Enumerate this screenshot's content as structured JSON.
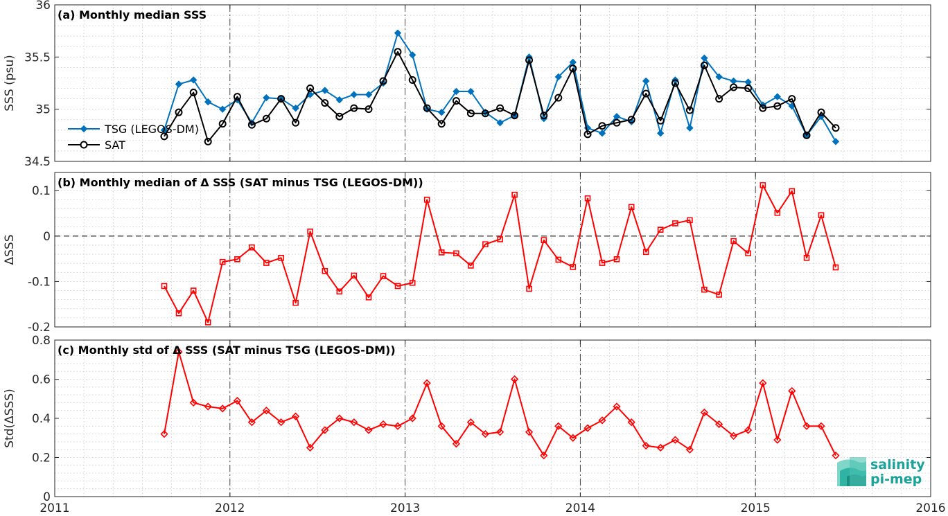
{
  "chart_data": [
    {
      "type": "line",
      "title": "(a) Monthly median SSS",
      "ylabel": "SSS (psu)",
      "ylim": [
        34.5,
        36
      ],
      "yticks": [
        "34.5",
        "35",
        "35.5",
        "36"
      ],
      "xlim": [
        2011,
        2016
      ],
      "legend_position": "left",
      "grid": true,
      "x": [
        2011.625,
        2011.708,
        2011.792,
        2011.875,
        2011.958,
        2012.042,
        2012.125,
        2012.208,
        2012.292,
        2012.375,
        2012.458,
        2012.542,
        2012.625,
        2012.708,
        2012.792,
        2012.875,
        2012.958,
        2013.042,
        2013.125,
        2013.208,
        2013.292,
        2013.375,
        2013.458,
        2013.542,
        2013.625,
        2013.708,
        2013.792,
        2013.875,
        2013.958,
        2014.042,
        2014.125,
        2014.208,
        2014.292,
        2014.375,
        2014.458,
        2014.542,
        2014.625,
        2014.708,
        2014.792,
        2014.875,
        2014.958,
        2015.042,
        2015.125,
        2015.208,
        2015.292,
        2015.375,
        2015.458
      ],
      "series": [
        {
          "name": "TSG (LEGOS-DM)",
          "color": "#0072BD",
          "marker": "diamond",
          "values": [
            34.8,
            35.24,
            35.28,
            35.07,
            35.0,
            35.09,
            34.87,
            35.11,
            35.1,
            35.01,
            35.14,
            35.18,
            35.09,
            35.14,
            35.14,
            35.25,
            35.73,
            35.52,
            35.0,
            34.97,
            35.17,
            35.17,
            34.97,
            34.87,
            34.94,
            35.5,
            34.91,
            35.31,
            35.45,
            34.82,
            34.77,
            34.93,
            34.88,
            35.27,
            34.77,
            35.28,
            34.82,
            35.49,
            35.31,
            35.27,
            35.26,
            35.04,
            35.12,
            35.03,
            34.75,
            34.93,
            34.69
          ]
        },
        {
          "name": "SAT",
          "color": "#000000",
          "marker": "circle",
          "values": [
            34.74,
            34.97,
            35.16,
            34.69,
            34.86,
            35.12,
            34.85,
            34.91,
            35.1,
            34.87,
            35.2,
            35.06,
            34.93,
            35.01,
            35.0,
            35.27,
            35.55,
            35.28,
            35.01,
            34.86,
            35.08,
            34.96,
            34.96,
            35.01,
            34.94,
            35.47,
            34.94,
            35.11,
            35.39,
            34.76,
            34.84,
            34.87,
            34.9,
            35.15,
            34.89,
            35.25,
            34.99,
            35.42,
            35.1,
            35.21,
            35.2,
            35.01,
            35.03,
            35.1,
            34.75,
            34.97,
            34.82
          ]
        }
      ]
    },
    {
      "type": "line",
      "title": "(b) Monthly median of Δ SSS (SAT minus TSG (LEGOS-DM))",
      "ylabel": "ΔSSS",
      "ylim": [
        -0.2,
        0.14
      ],
      "yticks": [
        "-0.2",
        "-0.1",
        "0",
        "0.1"
      ],
      "xlim": [
        2011,
        2016
      ],
      "reference_line": 0,
      "grid": true,
      "x": [
        2011.625,
        2011.708,
        2011.792,
        2011.875,
        2011.958,
        2012.042,
        2012.125,
        2012.208,
        2012.292,
        2012.375,
        2012.458,
        2012.542,
        2012.625,
        2012.708,
        2012.792,
        2012.875,
        2012.958,
        2013.042,
        2013.125,
        2013.208,
        2013.292,
        2013.375,
        2013.458,
        2013.542,
        2013.625,
        2013.708,
        2013.792,
        2013.875,
        2013.958,
        2014.042,
        2014.125,
        2014.208,
        2014.292,
        2014.375,
        2014.458,
        2014.542,
        2014.625,
        2014.708,
        2014.792,
        2014.875,
        2014.958,
        2015.042,
        2015.125,
        2015.208,
        2015.292,
        2015.375,
        2015.458
      ],
      "series": [
        {
          "color": "#FF0000",
          "marker": "square",
          "values": [
            -0.11,
            -0.17,
            -0.12,
            -0.19,
            -0.057,
            -0.051,
            -0.025,
            -0.059,
            -0.048,
            -0.147,
            0.01,
            -0.077,
            -0.122,
            -0.087,
            -0.135,
            -0.088,
            -0.11,
            -0.103,
            0.08,
            -0.036,
            -0.038,
            -0.065,
            -0.018,
            -0.007,
            0.091,
            -0.116,
            -0.009,
            -0.052,
            -0.068,
            0.083,
            -0.059,
            -0.051,
            0.064,
            -0.035,
            0.014,
            0.028,
            0.035,
            -0.118,
            -0.129,
            -0.011,
            -0.038,
            0.112,
            0.051,
            0.099,
            -0.048,
            0.046,
            -0.069
          ]
        }
      ]
    },
    {
      "type": "line",
      "title": "(c) Monthly std of Δ SSS (SAT minus TSG (LEGOS-DM))",
      "ylabel": "Std(ΔSSS)",
      "ylim": [
        0,
        0.8
      ],
      "yticks": [
        "0",
        "0.2",
        "0.4",
        "0.6",
        "0.8"
      ],
      "xlim": [
        2011,
        2016
      ],
      "xticks": [
        "2011",
        "2012",
        "2013",
        "2014",
        "2015",
        "2016"
      ],
      "grid": true,
      "x": [
        2011.625,
        2011.708,
        2011.792,
        2011.875,
        2011.958,
        2012.042,
        2012.125,
        2012.208,
        2012.292,
        2012.375,
        2012.458,
        2012.542,
        2012.625,
        2012.708,
        2012.792,
        2012.875,
        2012.958,
        2013.042,
        2013.125,
        2013.208,
        2013.292,
        2013.375,
        2013.458,
        2013.542,
        2013.625,
        2013.708,
        2013.792,
        2013.875,
        2013.958,
        2014.042,
        2014.125,
        2014.208,
        2014.292,
        2014.375,
        2014.458,
        2014.542,
        2014.625,
        2014.708,
        2014.792,
        2014.875,
        2014.958,
        2015.042,
        2015.125,
        2015.208,
        2015.292,
        2015.375,
        2015.458
      ],
      "series": [
        {
          "color": "#FF0000",
          "marker": "diamond",
          "values": [
            0.32,
            0.74,
            0.48,
            0.46,
            0.45,
            0.49,
            0.38,
            0.44,
            0.38,
            0.41,
            0.25,
            0.34,
            0.4,
            0.38,
            0.34,
            0.37,
            0.36,
            0.4,
            0.58,
            0.36,
            0.27,
            0.38,
            0.32,
            0.33,
            0.6,
            0.33,
            0.21,
            0.36,
            0.3,
            0.35,
            0.39,
            0.46,
            0.38,
            0.26,
            0.25,
            0.29,
            0.24,
            0.43,
            0.37,
            0.31,
            0.34,
            0.58,
            0.29,
            0.54,
            0.36,
            0.36,
            0.21
          ]
        }
      ]
    }
  ],
  "logo": {
    "line1": "salinity",
    "line2": "pi-mep"
  },
  "colors": {
    "tsg": "#0072BD",
    "sat": "#000000",
    "delta": "#FF0000",
    "logo": "#1aa39a"
  }
}
